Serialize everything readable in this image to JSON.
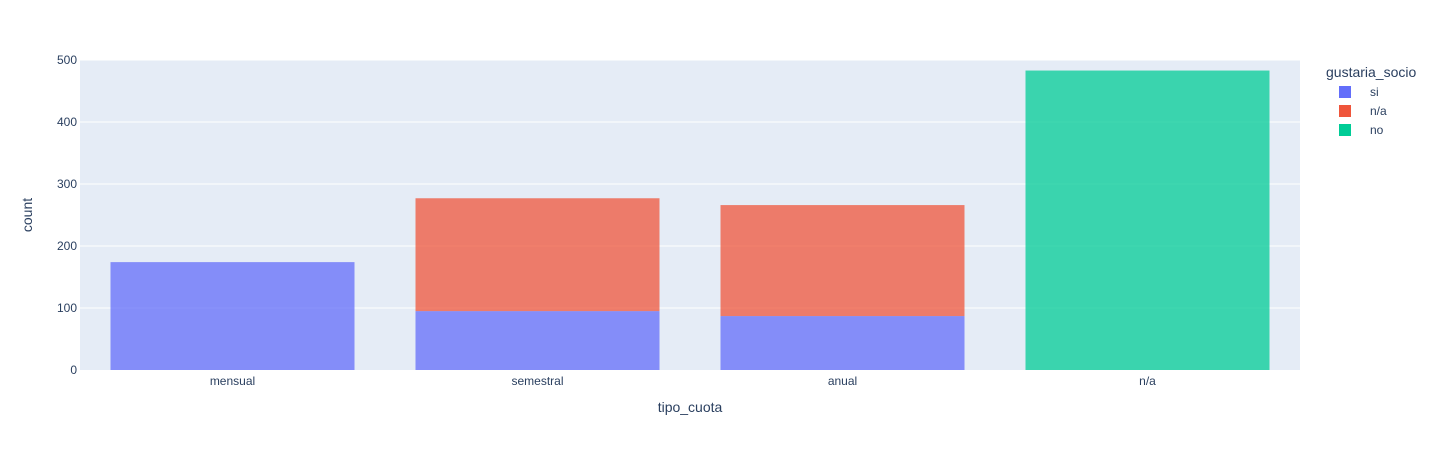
{
  "chart_data": {
    "type": "bar",
    "barmode": "stack",
    "categories": [
      "mensual",
      "semestral",
      "anual",
      "n/a"
    ],
    "series": [
      {
        "name": "si",
        "color": "#636efa",
        "values": [
          174,
          95,
          87,
          0
        ]
      },
      {
        "name": "n/a",
        "color": "#ef553b",
        "values": [
          0,
          182,
          179,
          0
        ]
      },
      {
        "name": "no",
        "color": "#00cc96",
        "values": [
          0,
          0,
          0,
          483
        ]
      }
    ],
    "xlabel": "tipo_cuota",
    "ylabel": "count",
    "ylim": [
      0,
      500
    ],
    "yticks": [
      0,
      100,
      200,
      300,
      400,
      500
    ],
    "grid": true,
    "legend": {
      "title": "gustaria_socio",
      "position": "top-right"
    },
    "colors": {
      "plot_background": "#e5ecf6",
      "gridline": "#ffffff",
      "text": "#2a3f5f"
    }
  }
}
